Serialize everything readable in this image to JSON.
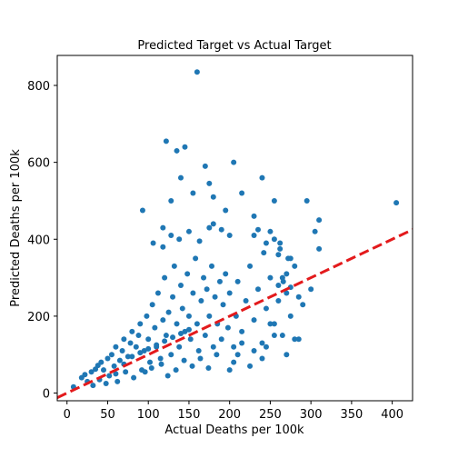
{
  "chart_data": {
    "type": "scatter",
    "title": "Predicted Target vs Actual Target",
    "xlabel": "Actual Deaths per 100k",
    "ylabel": "Predicted Deaths per 100k",
    "xlim": [
      -12,
      425
    ],
    "ylim": [
      -20,
      878
    ],
    "xticks": [
      0,
      50,
      100,
      150,
      200,
      250,
      300,
      350,
      400
    ],
    "yticks": [
      0,
      200,
      400,
      600,
      800
    ],
    "xtick_labels": [
      "0",
      "50",
      "100",
      "150",
      "200",
      "250",
      "300",
      "350",
      "400"
    ],
    "ytick_labels": [
      "0",
      "200",
      "400",
      "600",
      "800"
    ],
    "grid": false,
    "legend": "none",
    "point_color": "#1f77b4",
    "reference_line": {
      "style": "dashed",
      "color": "#e31a1c",
      "slope": 1,
      "intercept": 0
    },
    "series": [
      {
        "points": [
          [
            8,
            16
          ],
          [
            18,
            40
          ],
          [
            22,
            48
          ],
          [
            25,
            30
          ],
          [
            30,
            55
          ],
          [
            32,
            20
          ],
          [
            35,
            62
          ],
          [
            38,
            72
          ],
          [
            40,
            35
          ],
          [
            42,
            80
          ],
          [
            45,
            60
          ],
          [
            48,
            25
          ],
          [
            50,
            90
          ],
          [
            52,
            45
          ],
          [
            55,
            100
          ],
          [
            58,
            70
          ],
          [
            60,
            120
          ],
          [
            62,
            30
          ],
          [
            65,
            85
          ],
          [
            68,
            110
          ],
          [
            70,
            140
          ],
          [
            72,
            55
          ],
          [
            75,
            95
          ],
          [
            78,
            130
          ],
          [
            80,
            160
          ],
          [
            82,
            40
          ],
          [
            85,
            120
          ],
          [
            88,
            150
          ],
          [
            90,
            180
          ],
          [
            92,
            60
          ],
          [
            95,
            110
          ],
          [
            98,
            200
          ],
          [
            100,
            140
          ],
          [
            102,
            80
          ],
          [
            105,
            230
          ],
          [
            108,
            170
          ],
          [
            110,
            120
          ],
          [
            112,
            260
          ],
          [
            115,
            90
          ],
          [
            118,
            190
          ],
          [
            120,
            300
          ],
          [
            122,
            150
          ],
          [
            125,
            210
          ],
          [
            128,
            100
          ],
          [
            130,
            250
          ],
          [
            132,
            330
          ],
          [
            135,
            180
          ],
          [
            138,
            120
          ],
          [
            140,
            280
          ],
          [
            142,
            220
          ],
          [
            145,
            160
          ],
          [
            148,
            310
          ],
          [
            150,
            200
          ],
          [
            152,
            140
          ],
          [
            155,
            260
          ],
          [
            158,
            350
          ],
          [
            160,
            180
          ],
          [
            162,
            110
          ],
          [
            165,
            240
          ],
          [
            168,
            300
          ],
          [
            170,
            150
          ],
          [
            172,
            270
          ],
          [
            175,
            200
          ],
          [
            178,
            330
          ],
          [
            180,
            120
          ],
          [
            182,
            250
          ],
          [
            185,
            180
          ],
          [
            188,
            290
          ],
          [
            190,
            140
          ],
          [
            192,
            230
          ],
          [
            195,
            310
          ],
          [
            198,
            170
          ],
          [
            200,
            260
          ],
          [
            205,
            120
          ],
          [
            208,
            200
          ],
          [
            210,
            290
          ],
          [
            215,
            160
          ],
          [
            220,
            240
          ],
          [
            225,
            330
          ],
          [
            230,
            190
          ],
          [
            235,
            270
          ],
          [
            240,
            130
          ],
          [
            245,
            220
          ],
          [
            250,
            300
          ],
          [
            255,
            180
          ],
          [
            260,
            240
          ],
          [
            265,
            150
          ],
          [
            270,
            260
          ],
          [
            275,
            200
          ],
          [
            280,
            140
          ],
          [
            96,
            55
          ],
          [
            104,
            65
          ],
          [
            116,
            75
          ],
          [
            124,
            45
          ],
          [
            134,
            60
          ],
          [
            144,
            85
          ],
          [
            154,
            70
          ],
          [
            164,
            90
          ],
          [
            174,
            65
          ],
          [
            184,
            100
          ],
          [
            60,
            50
          ],
          [
            70,
            75
          ],
          [
            80,
            95
          ],
          [
            90,
            105
          ],
          [
            100,
            115
          ],
          [
            110,
            125
          ],
          [
            120,
            135
          ],
          [
            130,
            145
          ],
          [
            140,
            155
          ],
          [
            150,
            165
          ],
          [
            106,
            390
          ],
          [
            118,
            380
          ],
          [
            128,
            410
          ],
          [
            138,
            400
          ],
          [
            150,
            420
          ],
          [
            163,
            395
          ],
          [
            175,
            430
          ],
          [
            180,
            440
          ],
          [
            190,
            425
          ],
          [
            200,
            410
          ],
          [
            118,
            430
          ],
          [
            128,
            500
          ],
          [
            140,
            560
          ],
          [
            155,
            520
          ],
          [
            170,
            590
          ],
          [
            175,
            545
          ],
          [
            180,
            510
          ],
          [
            195,
            475
          ],
          [
            205,
            600
          ],
          [
            215,
            520
          ],
          [
            160,
            835
          ],
          [
            122,
            655
          ],
          [
            135,
            630
          ],
          [
            145,
            640
          ],
          [
            93,
            475
          ],
          [
            230,
            460
          ],
          [
            240,
            560
          ],
          [
            255,
            500
          ],
          [
            295,
            500
          ],
          [
            310,
            450
          ],
          [
            305,
            420
          ],
          [
            310,
            375
          ],
          [
            270,
            310
          ],
          [
            265,
            300
          ],
          [
            260,
            280
          ],
          [
            285,
            250
          ],
          [
            290,
            230
          ],
          [
            300,
            270
          ],
          [
            285,
            140
          ],
          [
            270,
            100
          ],
          [
            250,
            180
          ],
          [
            255,
            150
          ],
          [
            245,
            120
          ],
          [
            240,
            90
          ],
          [
            230,
            110
          ],
          [
            225,
            70
          ],
          [
            215,
            130
          ],
          [
            210,
            100
          ],
          [
            205,
            80
          ],
          [
            200,
            60
          ],
          [
            230,
            410
          ],
          [
            235,
            425
          ],
          [
            245,
            390
          ],
          [
            255,
            400
          ],
          [
            262,
            375
          ],
          [
            272,
            350
          ],
          [
            280,
            330
          ],
          [
            260,
            360
          ],
          [
            250,
            420
          ],
          [
            242,
            365
          ],
          [
            405,
            495
          ],
          [
            275,
            275
          ],
          [
            266,
            290
          ],
          [
            275,
            350
          ],
          [
            262,
            390
          ]
        ]
      }
    ]
  }
}
